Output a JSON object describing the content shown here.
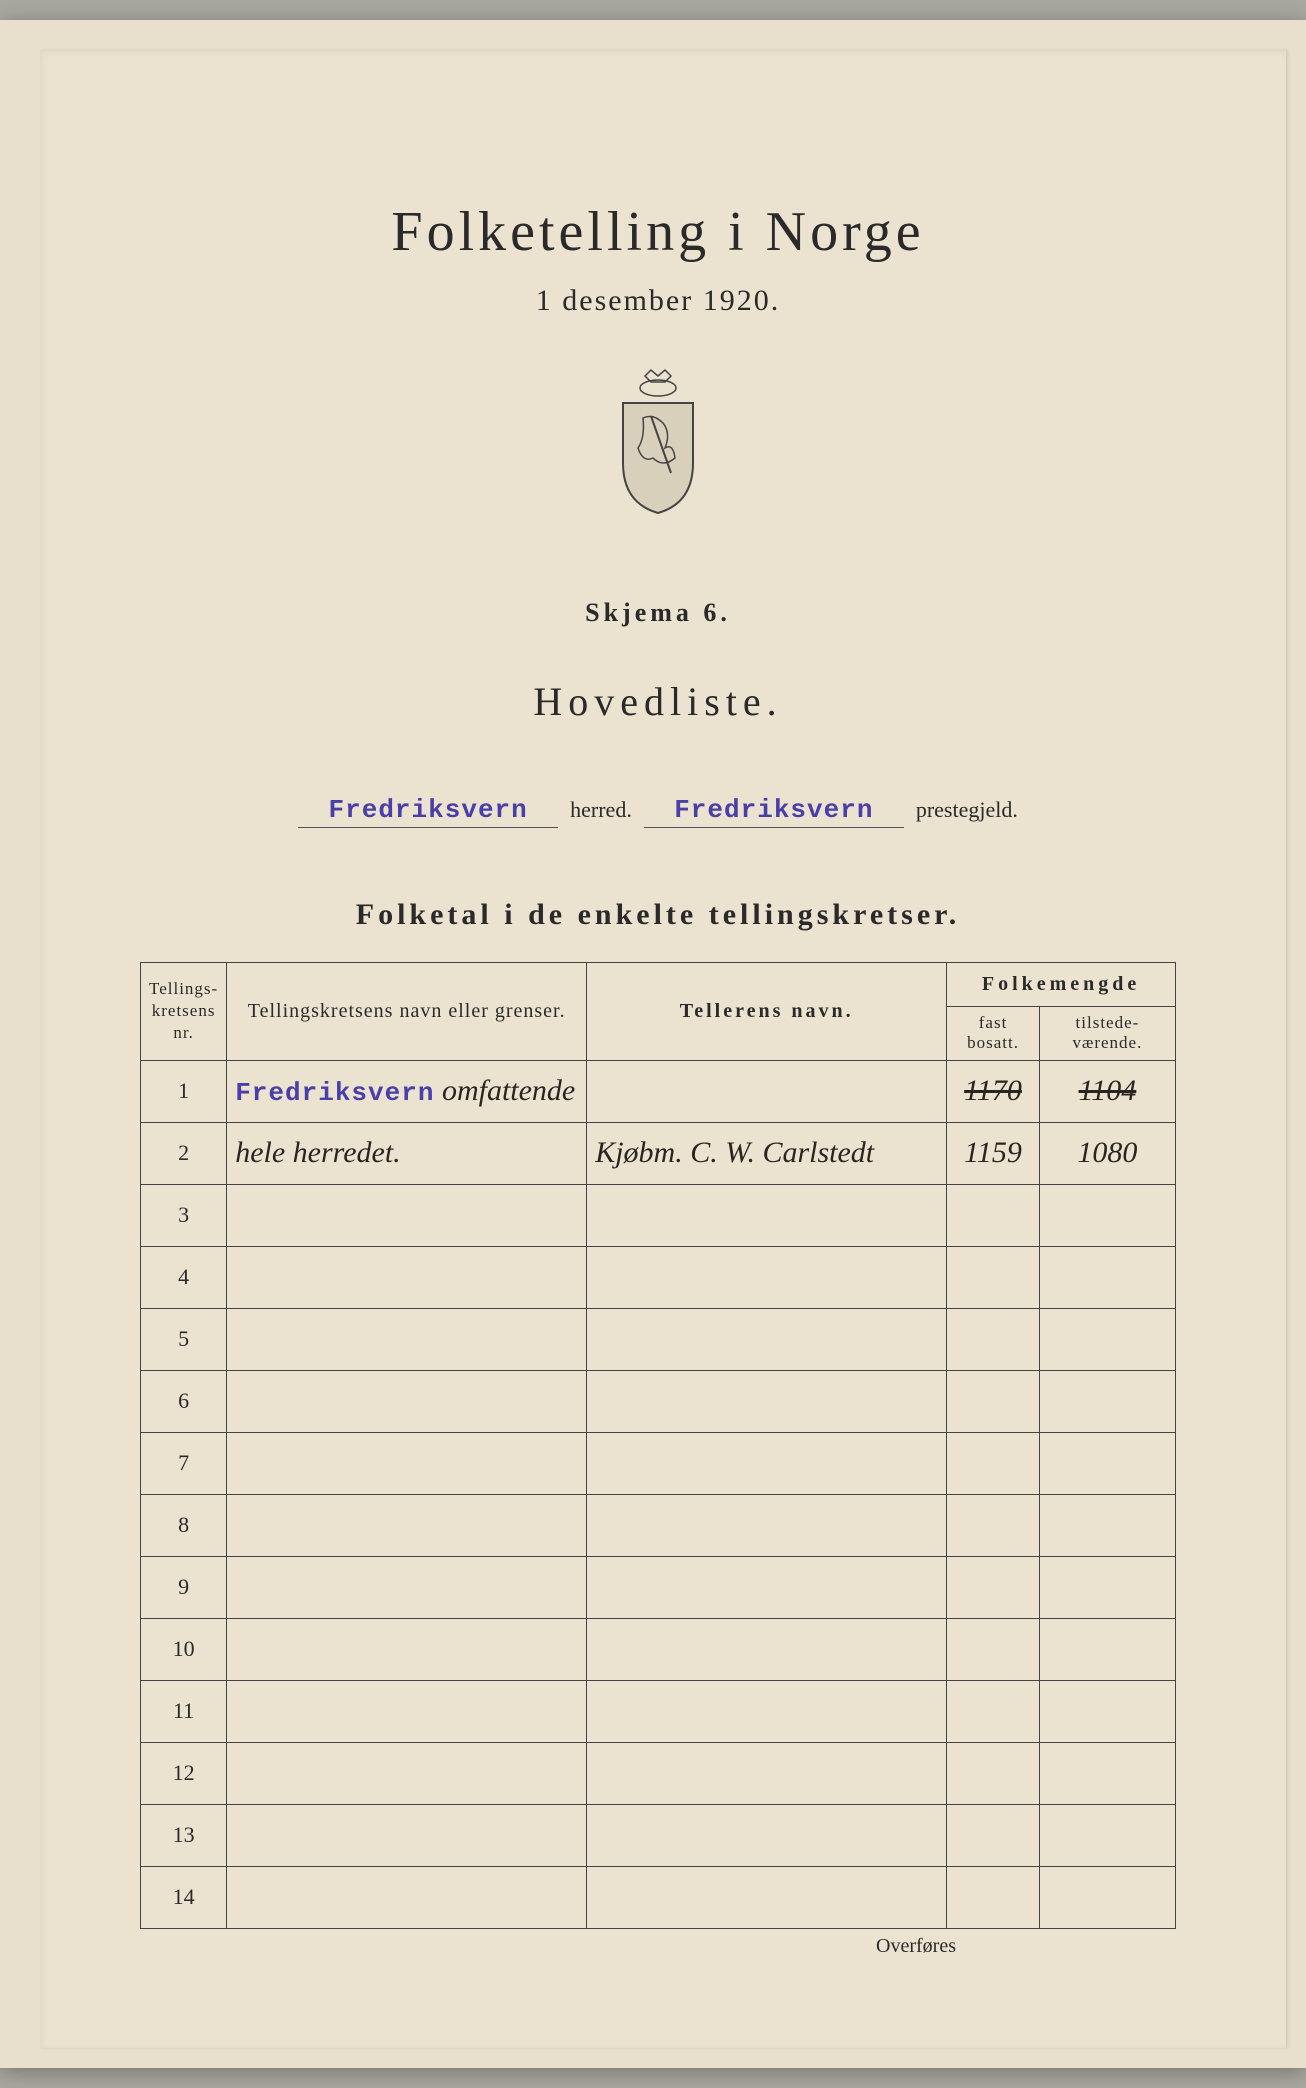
{
  "header": {
    "title": "Folketelling i Norge",
    "date": "1 desember 1920.",
    "schema": "Skjema 6.",
    "list_title": "Hovedliste."
  },
  "form": {
    "herred_value": "Fredriksvern",
    "herred_label": "herred.",
    "prestegjeld_value": "Fredriksvern",
    "prestegjeld_label": "prestegjeld."
  },
  "section_title": "Folketal i de enkelte tellingskretser.",
  "table": {
    "headers": {
      "nr": "Tellings-kretsens nr.",
      "navn": "Tellingskretsens navn eller grenser.",
      "teller": "Tellerens navn.",
      "folkemengde": "Folkemengde",
      "fast": "fast bosatt.",
      "tilstede": "tilstede-værende."
    },
    "rows": [
      {
        "nr": "1",
        "navn_stamp": "Fredriksvern",
        "navn_hand": " omfattende",
        "teller": "",
        "fast": "1170",
        "fast_struck": true,
        "tilstede": "1104",
        "tilstede_struck": true
      },
      {
        "nr": "2",
        "navn_hand": "hele herredet.",
        "teller": "Kjøbm. C. W. Carlstedt",
        "fast": "1159",
        "tilstede": "1080"
      },
      {
        "nr": "3"
      },
      {
        "nr": "4"
      },
      {
        "nr": "5"
      },
      {
        "nr": "6"
      },
      {
        "nr": "7"
      },
      {
        "nr": "8"
      },
      {
        "nr": "9"
      },
      {
        "nr": "10"
      },
      {
        "nr": "11"
      },
      {
        "nr": "12"
      },
      {
        "nr": "13"
      },
      {
        "nr": "14"
      }
    ],
    "footer": "Overføres"
  },
  "colors": {
    "paper": "#ebe3d0",
    "text": "#2a2a2a",
    "stamp": "#4a3fa8",
    "ink": "#2a2520"
  }
}
